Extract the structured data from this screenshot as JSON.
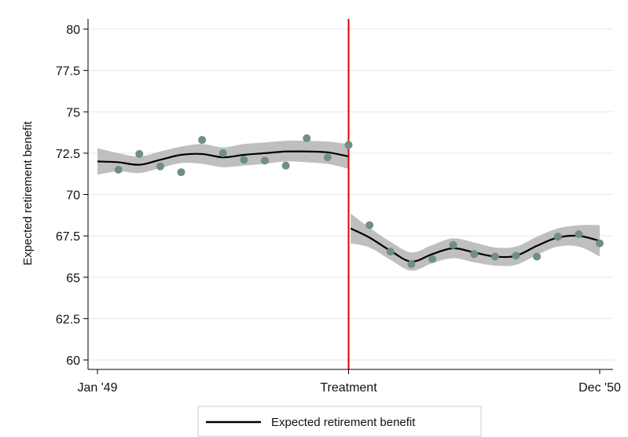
{
  "chart_data": {
    "type": "scatter",
    "title": "",
    "ylabel": "Expected retirement benefit",
    "xlabel": "",
    "ylim": [
      60,
      80
    ],
    "y_ticks": [
      60,
      62.5,
      65,
      67.5,
      70,
      72.5,
      75,
      77.5,
      80
    ],
    "y_tick_labels": [
      "60",
      "62.5",
      "65",
      "67.5",
      "70",
      "72.5",
      "75",
      "77.5",
      "80"
    ],
    "x_range": [
      0,
      24
    ],
    "x_ticks": [
      {
        "value": 0,
        "label": "Jan '49"
      },
      {
        "value": 12,
        "label": "Treatment"
      },
      {
        "value": 24,
        "label": "Dec '50"
      }
    ],
    "grid": true,
    "legend_position": "bottom",
    "cutoff": {
      "x": 12,
      "color": "#e00000"
    },
    "series": [
      {
        "name": "Expected retirement benefit",
        "role": "fitted line with confidence band",
        "color": "#000000",
        "band_color": "#bfbfbf",
        "segments": [
          {
            "x": [
              0,
              1,
              2,
              3,
              4,
              5,
              6,
              7,
              8,
              9,
              10,
              11,
              12
            ],
            "y": [
              72.0,
              71.95,
              71.8,
              72.1,
              72.4,
              72.45,
              72.25,
              72.4,
              72.5,
              72.6,
              72.6,
              72.55,
              72.3
            ],
            "lower": [
              71.2,
              71.4,
              71.3,
              71.6,
              71.9,
              71.85,
              71.65,
              71.75,
              71.85,
              72.0,
              71.95,
              71.85,
              71.55
            ],
            "upper": [
              72.8,
              72.5,
              72.3,
              72.6,
              72.9,
              73.05,
              72.85,
              73.05,
              73.15,
              73.25,
              73.25,
              73.2,
              73.05
            ]
          },
          {
            "x": [
              12.1,
              13,
              14,
              15,
              16,
              17,
              18,
              19,
              20,
              21,
              22,
              23,
              24
            ],
            "y": [
              67.95,
              67.4,
              66.6,
              65.95,
              66.4,
              66.75,
              66.5,
              66.25,
              66.3,
              66.9,
              67.4,
              67.5,
              67.2
            ],
            "lower": [
              67.05,
              66.8,
              66.05,
              65.4,
              65.85,
              66.15,
              65.9,
              65.7,
              65.75,
              66.35,
              66.85,
              66.85,
              66.25
            ],
            "upper": [
              68.85,
              68.0,
              67.15,
              66.5,
              66.95,
              67.35,
              67.1,
              66.8,
              66.85,
              67.45,
              67.95,
              68.15,
              68.15
            ]
          }
        ]
      },
      {
        "name": "",
        "role": "binned means",
        "color": "#6f8f85",
        "points": [
          {
            "x": 1,
            "y": 71.5
          },
          {
            "x": 2,
            "y": 72.45
          },
          {
            "x": 3,
            "y": 71.7
          },
          {
            "x": 4,
            "y": 71.35
          },
          {
            "x": 5,
            "y": 73.3
          },
          {
            "x": 6,
            "y": 72.5
          },
          {
            "x": 7,
            "y": 72.1
          },
          {
            "x": 8,
            "y": 72.05
          },
          {
            "x": 9,
            "y": 71.75
          },
          {
            "x": 10,
            "y": 73.4
          },
          {
            "x": 11,
            "y": 72.25
          },
          {
            "x": 12,
            "y": 73.0
          },
          {
            "x": 13,
            "y": 68.15
          },
          {
            "x": 14,
            "y": 66.55
          },
          {
            "x": 15,
            "y": 65.8
          },
          {
            "x": 16,
            "y": 66.1
          },
          {
            "x": 17,
            "y": 66.95
          },
          {
            "x": 18,
            "y": 66.4
          },
          {
            "x": 19,
            "y": 66.25
          },
          {
            "x": 20,
            "y": 66.3
          },
          {
            "x": 21,
            "y": 66.25
          },
          {
            "x": 22,
            "y": 67.45
          },
          {
            "x": 23,
            "y": 67.6
          },
          {
            "x": 24,
            "y": 67.05
          }
        ]
      }
    ]
  }
}
